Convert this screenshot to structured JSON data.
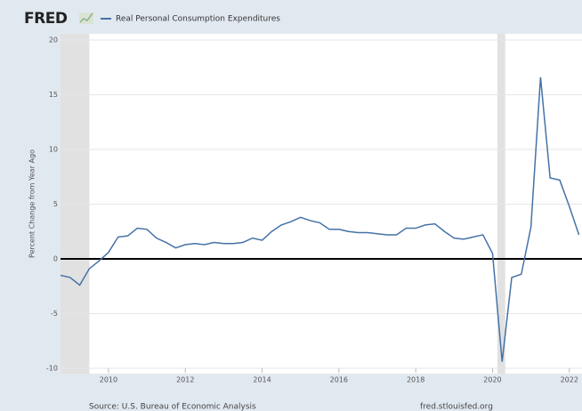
{
  "logo": "FRED",
  "chart_data": {
    "type": "line",
    "y_label": "Percent Change from Year Ago",
    "source": "Source: U.S. Bureau of Economic Analysis",
    "site": "fred.stlouisfed.org",
    "x": [
      2008.75,
      2009.0,
      2009.25,
      2009.5,
      2009.75,
      2010.0,
      2010.25,
      2010.5,
      2010.75,
      2011.0,
      2011.25,
      2011.5,
      2011.75,
      2012.0,
      2012.25,
      2012.5,
      2012.75,
      2013.0,
      2013.25,
      2013.5,
      2013.75,
      2014.0,
      2014.25,
      2014.5,
      2014.75,
      2015.0,
      2015.25,
      2015.5,
      2015.75,
      2016.0,
      2016.25,
      2016.5,
      2016.75,
      2017.0,
      2017.25,
      2017.5,
      2017.75,
      2018.0,
      2018.25,
      2018.5,
      2018.75,
      2019.0,
      2019.25,
      2019.5,
      2019.75,
      2020.0,
      2020.25,
      2020.5,
      2020.75,
      2021.0,
      2021.25,
      2021.5,
      2021.75,
      2022.0,
      2022.25
    ],
    "series": [
      {
        "name": "Real Personal Consumption Expenditures",
        "color": "#4572a7",
        "values": [
          -1.5,
          -1.7,
          -2.4,
          -0.9,
          -0.2,
          0.6,
          2.0,
          2.1,
          2.8,
          2.7,
          1.9,
          1.5,
          1.0,
          1.3,
          1.4,
          1.3,
          1.5,
          1.4,
          1.4,
          1.5,
          1.9,
          1.7,
          2.5,
          3.1,
          3.4,
          3.8,
          3.5,
          3.3,
          2.7,
          2.7,
          2.5,
          2.4,
          2.4,
          2.3,
          2.2,
          2.2,
          2.8,
          2.8,
          3.1,
          3.2,
          2.5,
          1.9,
          1.8,
          2.0,
          2.2,
          0.5,
          -9.4,
          -1.7,
          -1.4,
          2.9,
          16.6,
          7.4,
          7.2,
          4.8,
          2.2
        ]
      }
    ],
    "recessions": [
      [
        2008.75,
        2009.5
      ],
      [
        2020.125,
        2020.33
      ]
    ],
    "xlim": [
      2008.75,
      2022.33
    ],
    "xticks": [
      2010,
      2012,
      2014,
      2016,
      2018,
      2020,
      2022
    ],
    "ylim": [
      -10,
      20
    ],
    "yticks": [
      -10,
      -5,
      0,
      5,
      10,
      15,
      20
    ],
    "grid": true,
    "zero_line": true
  }
}
